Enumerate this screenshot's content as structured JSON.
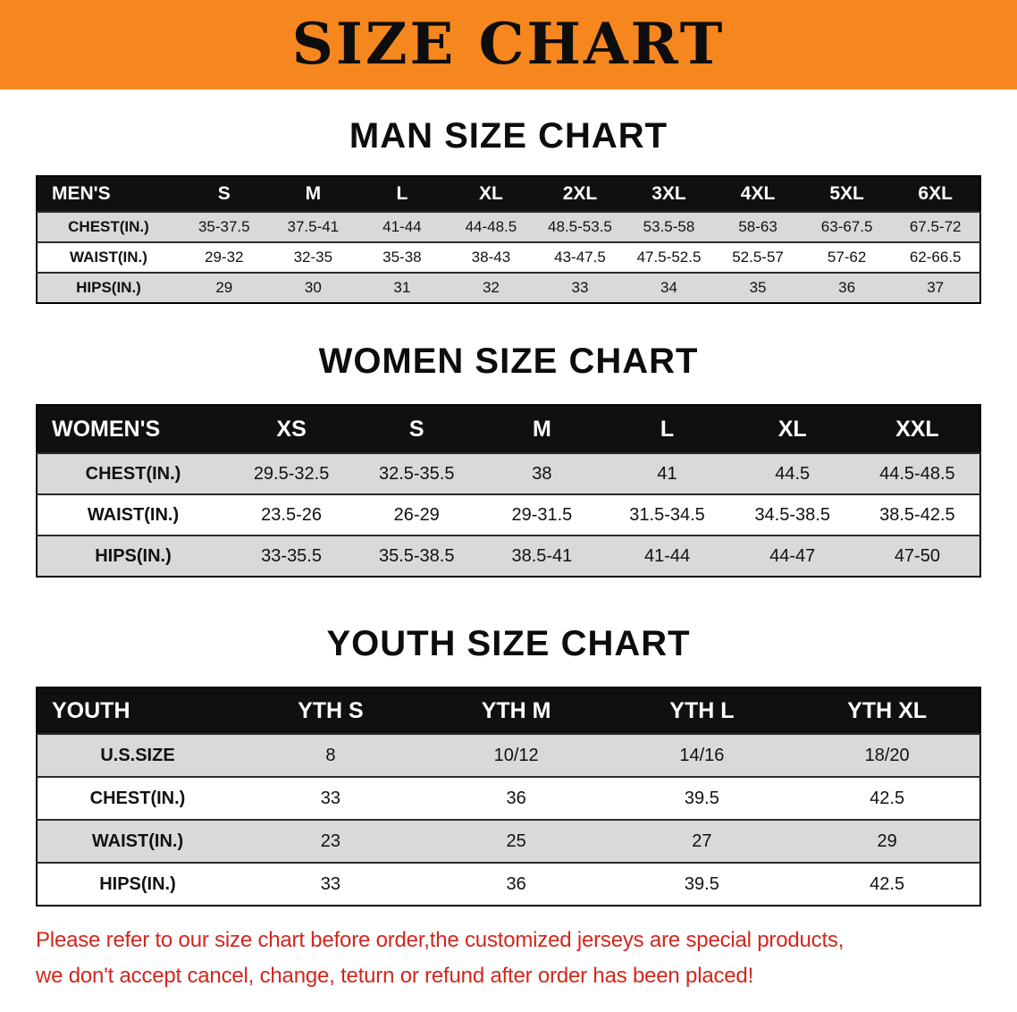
{
  "banner": {
    "title": "SIZE CHART"
  },
  "sections": [
    {
      "heading": "MAN SIZE CHART",
      "table": {
        "header": [
          "MEN'S",
          "S",
          "M",
          "L",
          "XL",
          "2XL",
          "3XL",
          "4XL",
          "5XL",
          "6XL"
        ],
        "rows": [
          [
            "CHEST(IN.)",
            "35-37.5",
            "37.5-41",
            "41-44",
            "44-48.5",
            "48.5-53.5",
            "53.5-58",
            "58-63",
            "63-67.5",
            "67.5-72"
          ],
          [
            "WAIST(IN.)",
            "29-32",
            "32-35",
            "35-38",
            "38-43",
            "43-47.5",
            "47.5-52.5",
            "52.5-57",
            "57-62",
            "62-66.5"
          ],
          [
            "HIPS(IN.)",
            "29",
            "30",
            "31",
            "32",
            "33",
            "34",
            "35",
            "36",
            "37"
          ]
        ]
      }
    },
    {
      "heading": "WOMEN SIZE CHART",
      "table": {
        "header": [
          "WOMEN'S",
          "XS",
          "S",
          "M",
          "L",
          "XL",
          "XXL"
        ],
        "rows": [
          [
            "CHEST(IN.)",
            "29.5-32.5",
            "32.5-35.5",
            "38",
            "41",
            "44.5",
            "44.5-48.5"
          ],
          [
            "WAIST(IN.)",
            "23.5-26",
            "26-29",
            "29-31.5",
            "31.5-34.5",
            "34.5-38.5",
            "38.5-42.5"
          ],
          [
            "HIPS(IN.)",
            "33-35.5",
            "35.5-38.5",
            "38.5-41",
            "41-44",
            "44-47",
            "47-50"
          ]
        ]
      }
    },
    {
      "heading": "YOUTH SIZE CHART",
      "table": {
        "header": [
          "YOUTH",
          "YTH S",
          "YTH M",
          "YTH L",
          "YTH XL"
        ],
        "rows": [
          [
            "U.S.SIZE",
            "8",
            "10/12",
            "14/16",
            "18/20"
          ],
          [
            "CHEST(IN.)",
            "33",
            "36",
            "39.5",
            "42.5"
          ],
          [
            "WAIST(IN.)",
            "23",
            "25",
            "27",
            "29"
          ],
          [
            "HIPS(IN.)",
            "33",
            "36",
            "39.5",
            "42.5"
          ]
        ]
      }
    }
  ],
  "footer": {
    "lines": [
      "Please refer to our size chart before order,the customized jerseys are special products,",
      "we don't accept cancel, change, teturn or refund after order has been placed!"
    ]
  },
  "colors": {
    "banner_orange": "#f6871f",
    "table_header_black": "#101010",
    "row_alt_gray": "#d9d9d9",
    "footer_red": "#d3261c"
  }
}
